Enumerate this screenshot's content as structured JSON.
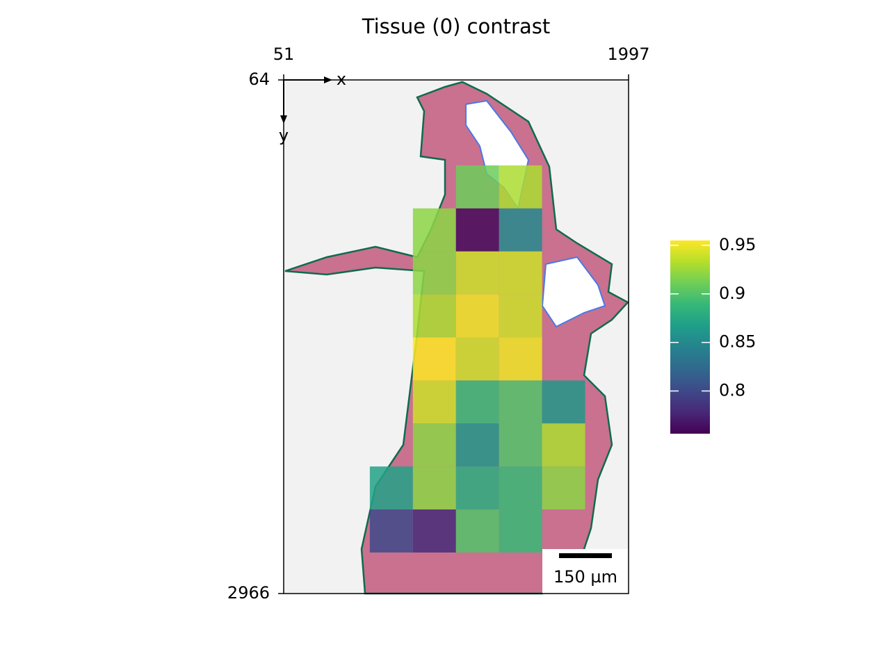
{
  "chart_data": {
    "type": "heatmap",
    "title": "Tissue (0) contrast",
    "xlim": [
      51,
      1997
    ],
    "ylim": [
      64,
      2966
    ],
    "xticks": [
      51,
      1997
    ],
    "yticks": [
      64,
      2966
    ],
    "x_axis_label": "x",
    "y_axis_label": "y",
    "x_edges": [
      537,
      780,
      1023,
      1266,
      1509,
      1752
    ],
    "y_edges": [
      547,
      790,
      1033,
      1276,
      1519,
      1762,
      2005,
      2248,
      2491,
      2734
    ],
    "values": [
      [
        null,
        null,
        0.91,
        0.93,
        null
      ],
      [
        null,
        0.92,
        0.76,
        0.85,
        null
      ],
      [
        null,
        0.92,
        0.94,
        0.94,
        null
      ],
      [
        null,
        0.93,
        0.95,
        0.94,
        null
      ],
      [
        null,
        0.96,
        0.94,
        0.95,
        null
      ],
      [
        null,
        0.94,
        0.89,
        0.9,
        0.86
      ],
      [
        null,
        0.92,
        0.86,
        0.9,
        0.93
      ],
      [
        0.87,
        0.92,
        0.88,
        0.89,
        0.92
      ],
      [
        0.8,
        0.78,
        0.9,
        0.89,
        null
      ]
    ],
    "colormap": "viridis",
    "clim": [
      0.756,
      0.955
    ],
    "colorbar_ticks": [
      0.8,
      0.85,
      0.9,
      0.95
    ],
    "scale_bar_label": "150 µm"
  }
}
